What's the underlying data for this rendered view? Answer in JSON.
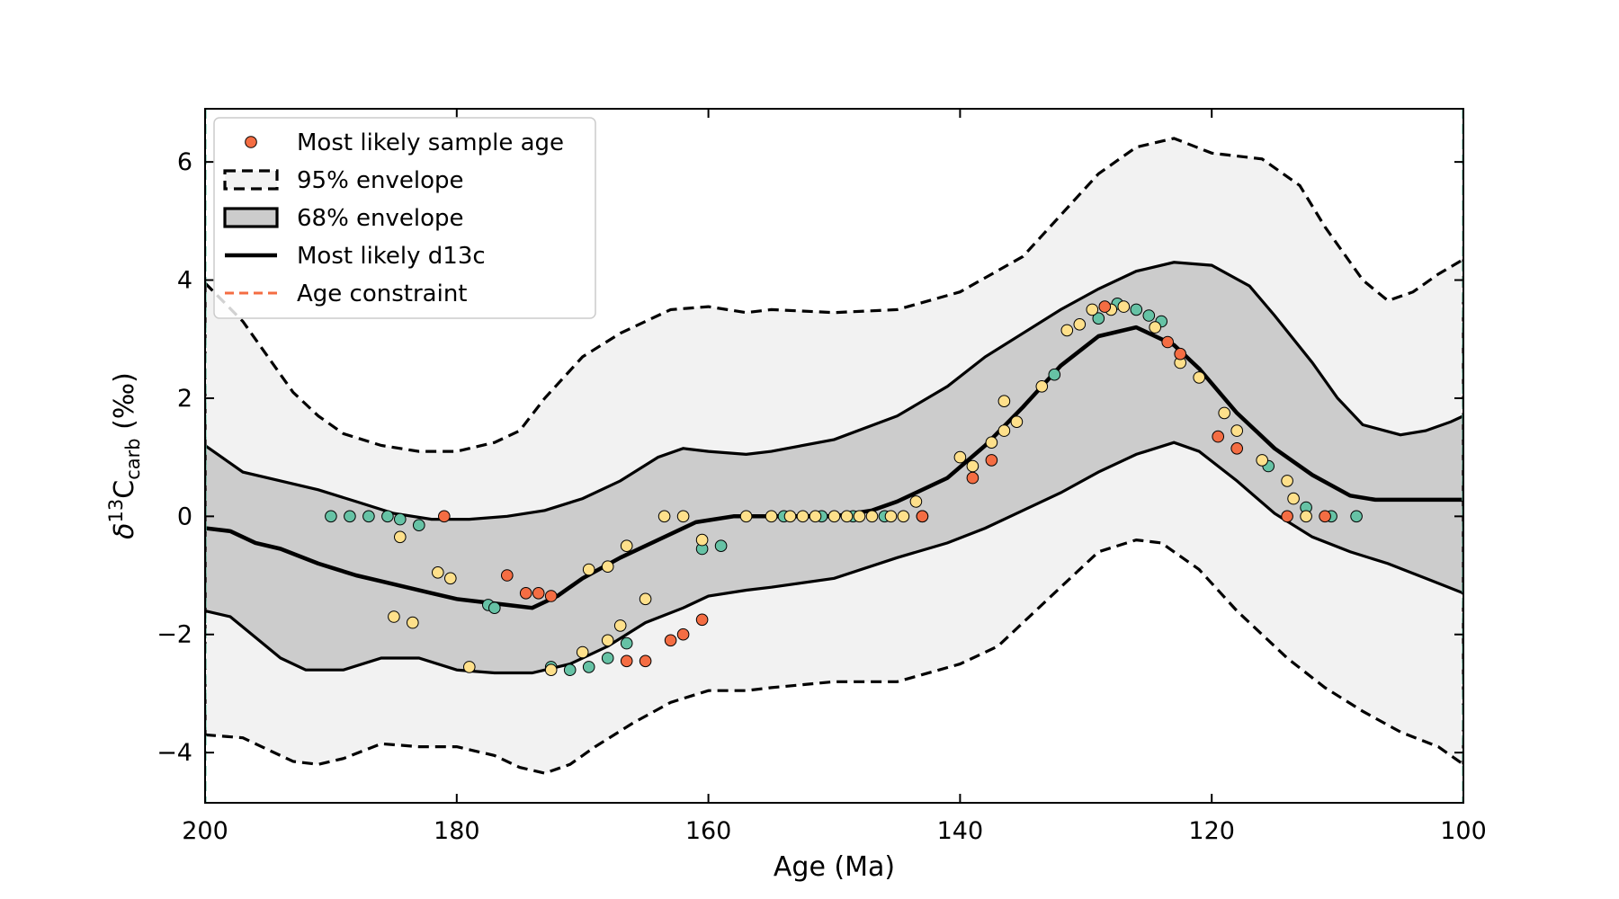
{
  "chart_data": {
    "type": "line",
    "xlabel": "Age (Ma)",
    "ylabel": {
      "main": "δ",
      "sup": "13",
      "base": "C",
      "sub": "carb",
      "unit": " (‰)"
    },
    "xlim": [
      200,
      100
    ],
    "ylim": [
      -4.85,
      6.9
    ],
    "x_reversed": true,
    "x_ticks": [
      200,
      180,
      160,
      140,
      120,
      100
    ],
    "y_ticks": [
      -4,
      -2,
      0,
      2,
      4,
      6
    ],
    "x_tick_labels": [
      "200",
      "180",
      "160",
      "140",
      "120",
      "100"
    ],
    "y_tick_labels": [
      "−4",
      "−2",
      "0",
      "2",
      "4",
      "6"
    ],
    "grid": false,
    "legend_placement": "top-left",
    "legend": [
      {
        "label": "Most likely sample age",
        "kind": "marker"
      },
      {
        "label": "95% envelope",
        "kind": "dashed-box"
      },
      {
        "label": "68% envelope",
        "kind": "solid-box"
      },
      {
        "label": "Most likely d13c",
        "kind": "line"
      },
      {
        "label": "Age constraint",
        "kind": "dashed-line"
      }
    ],
    "colors": {
      "envelope95": "#f2f2f2",
      "envelope68": "#cccccc",
      "median": "#000000",
      "constraint": "#66c2a5",
      "legend_constraint": "#f46d43",
      "legend_marker": "#f46d43"
    },
    "age_constraints": [
      200,
      100
    ],
    "envelope95_upper": {
      "x": [
        200,
        197,
        195,
        193,
        191,
        189,
        186,
        183,
        180,
        177,
        175,
        173,
        170,
        167,
        163,
        160,
        157,
        155,
        150,
        145,
        140,
        135,
        132,
        129,
        126,
        123,
        120,
        116,
        113,
        111,
        108,
        106,
        104,
        102,
        100
      ],
      "y": [
        3.95,
        3.3,
        2.7,
        2.1,
        1.7,
        1.4,
        1.2,
        1.1,
        1.1,
        1.25,
        1.45,
        2.0,
        2.7,
        3.1,
        3.5,
        3.55,
        3.45,
        3.5,
        3.45,
        3.5,
        3.8,
        4.4,
        5.1,
        5.8,
        6.25,
        6.4,
        6.15,
        6.05,
        5.6,
        4.9,
        4.0,
        3.65,
        3.8,
        4.1,
        4.35
      ]
    },
    "envelope95_lower": {
      "x": [
        200,
        197,
        195,
        193,
        191,
        189,
        186,
        183,
        180,
        177,
        175,
        173,
        171,
        169,
        166,
        163,
        160,
        157,
        155,
        150,
        145,
        140,
        137,
        133,
        129,
        126,
        124,
        121,
        118,
        114,
        111,
        108,
        105,
        102,
        100
      ],
      "y": [
        -3.7,
        -3.75,
        -3.95,
        -4.15,
        -4.2,
        -4.1,
        -3.85,
        -3.9,
        -3.9,
        -4.05,
        -4.25,
        -4.35,
        -4.2,
        -3.9,
        -3.5,
        -3.15,
        -2.95,
        -2.95,
        -2.9,
        -2.8,
        -2.8,
        -2.5,
        -2.2,
        -1.4,
        -0.6,
        -0.4,
        -0.45,
        -0.9,
        -1.6,
        -2.4,
        -2.9,
        -3.3,
        -3.65,
        -3.9,
        -4.2
      ]
    },
    "envelope68_upper": {
      "x": [
        200,
        197,
        194,
        191,
        188,
        185,
        182,
        179,
        176,
        173,
        170,
        167,
        164,
        162,
        160,
        157,
        155,
        150,
        145,
        141,
        138,
        135,
        132,
        129,
        126,
        123,
        120,
        117,
        115,
        112,
        110,
        108,
        105,
        103,
        101,
        100
      ],
      "y": [
        1.2,
        0.75,
        0.6,
        0.45,
        0.25,
        0.05,
        -0.05,
        -0.05,
        0.0,
        0.1,
        0.3,
        0.6,
        1.0,
        1.15,
        1.1,
        1.05,
        1.1,
        1.3,
        1.7,
        2.2,
        2.7,
        3.1,
        3.5,
        3.85,
        4.15,
        4.3,
        4.25,
        3.9,
        3.4,
        2.6,
        2.0,
        1.55,
        1.38,
        1.45,
        1.6,
        1.7
      ]
    },
    "envelope68_lower": {
      "x": [
        200,
        198,
        196,
        194,
        192,
        189,
        186,
        183,
        180,
        177,
        174,
        171,
        168,
        165,
        162,
        160,
        157,
        155,
        150,
        145,
        141,
        138,
        135,
        132,
        129,
        126,
        123,
        121,
        118,
        115,
        112,
        109,
        106,
        103,
        100
      ],
      "y": [
        -1.6,
        -1.7,
        -2.05,
        -2.4,
        -2.6,
        -2.6,
        -2.4,
        -2.4,
        -2.6,
        -2.65,
        -2.65,
        -2.5,
        -2.2,
        -1.8,
        -1.55,
        -1.35,
        -1.25,
        -1.2,
        -1.05,
        -0.7,
        -0.45,
        -0.2,
        0.1,
        0.4,
        0.75,
        1.05,
        1.25,
        1.1,
        0.6,
        0.05,
        -0.35,
        -0.6,
        -0.8,
        -1.05,
        -1.3
      ]
    },
    "median": {
      "x": [
        200,
        198,
        196,
        194,
        191,
        188,
        186,
        184,
        182,
        180,
        178,
        176,
        174,
        172,
        170,
        167,
        164,
        161,
        158,
        155,
        150,
        147,
        145,
        141,
        138,
        135,
        132,
        129,
        126,
        123,
        121,
        118,
        115,
        112,
        109,
        107,
        105,
        100
      ],
      "y": [
        -0.2,
        -0.25,
        -0.45,
        -0.55,
        -0.8,
        -1.0,
        -1.1,
        -1.2,
        -1.3,
        -1.4,
        -1.45,
        -1.5,
        -1.55,
        -1.35,
        -1.05,
        -0.7,
        -0.4,
        -0.1,
        0.0,
        0.0,
        0.0,
        0.1,
        0.25,
        0.65,
        1.2,
        1.85,
        2.55,
        3.05,
        3.2,
        2.9,
        2.5,
        1.75,
        1.15,
        0.7,
        0.35,
        0.28,
        0.28,
        0.28
      ]
    },
    "series": [
      {
        "color": "#66c2a5",
        "points": [
          [
            190,
            0
          ],
          [
            188.5,
            0
          ],
          [
            187,
            0
          ],
          [
            185.5,
            0
          ],
          [
            184.5,
            -0.05
          ],
          [
            183,
            -0.15
          ],
          [
            177.5,
            -1.5
          ],
          [
            177,
            -1.55
          ],
          [
            172.5,
            -2.55
          ],
          [
            171,
            -2.6
          ],
          [
            169.5,
            -2.55
          ],
          [
            168,
            -2.4
          ],
          [
            166.5,
            -2.15
          ],
          [
            160.5,
            -0.55
          ],
          [
            159,
            -0.5
          ],
          [
            154,
            0
          ],
          [
            151,
            0
          ],
          [
            148.5,
            0
          ],
          [
            146,
            0
          ],
          [
            143,
            0
          ],
          [
            132.5,
            2.4
          ],
          [
            129,
            3.35
          ],
          [
            127.5,
            3.6
          ],
          [
            126,
            3.5
          ],
          [
            125,
            3.4
          ],
          [
            124,
            3.3
          ],
          [
            115.5,
            0.85
          ],
          [
            112.5,
            0.15
          ],
          [
            110.5,
            0
          ],
          [
            108.5,
            0
          ]
        ]
      },
      {
        "color": "#fee08b",
        "points": [
          [
            184.5,
            -0.35
          ],
          [
            181.5,
            -0.95
          ],
          [
            180.5,
            -1.05
          ],
          [
            185,
            -1.7
          ],
          [
            183.5,
            -1.8
          ],
          [
            179,
            -2.55
          ],
          [
            172.5,
            -2.6
          ],
          [
            170,
            -2.3
          ],
          [
            169.5,
            -0.9
          ],
          [
            168,
            -0.85
          ],
          [
            168,
            -2.1
          ],
          [
            167,
            -1.85
          ],
          [
            166.5,
            -0.5
          ],
          [
            165,
            -1.4
          ],
          [
            163.5,
            0
          ],
          [
            162,
            0
          ],
          [
            160.5,
            -0.4
          ],
          [
            157,
            0
          ],
          [
            155,
            0
          ],
          [
            153.5,
            0
          ],
          [
            152.5,
            0
          ],
          [
            151.5,
            0
          ],
          [
            150,
            0
          ],
          [
            149,
            0
          ],
          [
            148,
            0
          ],
          [
            147,
            0
          ],
          [
            145.5,
            0
          ],
          [
            144.5,
            0
          ],
          [
            143.5,
            0.25
          ],
          [
            140,
            1.0
          ],
          [
            139,
            0.85
          ],
          [
            137.5,
            1.25
          ],
          [
            136.5,
            1.45
          ],
          [
            136.5,
            1.95
          ],
          [
            135.5,
            1.6
          ],
          [
            133.5,
            2.2
          ],
          [
            131.5,
            3.15
          ],
          [
            130.5,
            3.25
          ],
          [
            129.5,
            3.5
          ],
          [
            128,
            3.5
          ],
          [
            127,
            3.55
          ],
          [
            124.5,
            3.2
          ],
          [
            122.5,
            2.6
          ],
          [
            121,
            2.35
          ],
          [
            119,
            1.75
          ],
          [
            118,
            1.45
          ],
          [
            116,
            0.95
          ],
          [
            114,
            0.6
          ],
          [
            113.5,
            0.3
          ],
          [
            112.5,
            0
          ]
        ]
      },
      {
        "color": "#f46d43",
        "points": [
          [
            181,
            0
          ],
          [
            176,
            -1
          ],
          [
            174.5,
            -1.3
          ],
          [
            173.5,
            -1.3
          ],
          [
            172.5,
            -1.35
          ],
          [
            166.5,
            -2.45
          ],
          [
            165,
            -2.45
          ],
          [
            163,
            -2.1
          ],
          [
            162,
            -2.0
          ],
          [
            160.5,
            -1.75
          ],
          [
            143,
            0
          ],
          [
            139,
            0.65
          ],
          [
            137.5,
            0.95
          ],
          [
            128.5,
            3.55
          ],
          [
            123.5,
            2.95
          ],
          [
            122.5,
            2.75
          ],
          [
            119.5,
            1.35
          ],
          [
            118,
            1.15
          ],
          [
            114,
            0
          ],
          [
            111,
            0
          ]
        ]
      }
    ]
  }
}
